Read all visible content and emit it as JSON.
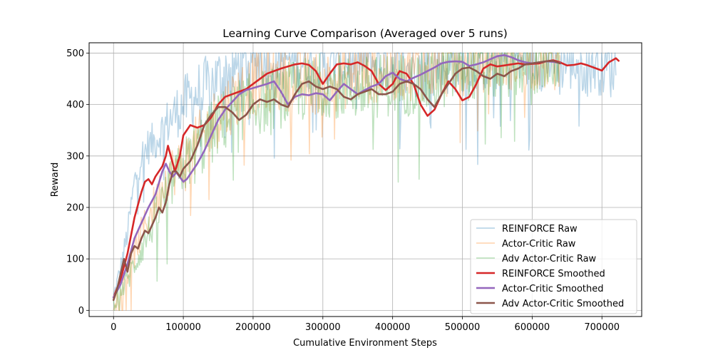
{
  "chart_data": {
    "type": "line",
    "title": "Learning Curve Comparison (Averaged over 5 runs)",
    "xlabel": "Cumulative Environment Steps",
    "ylabel": "Reward",
    "xlim": [
      -35000,
      757000
    ],
    "ylim": [
      -12,
      520
    ],
    "xticks": [
      0,
      100000,
      200000,
      300000,
      400000,
      500000,
      600000,
      700000
    ],
    "xtick_labels": [
      "0",
      "100000",
      "200000",
      "300000",
      "400000",
      "500000",
      "600000",
      "700000"
    ],
    "yticks": [
      0,
      100,
      200,
      300,
      400,
      500
    ],
    "ytick_labels": [
      "0",
      "100",
      "200",
      "300",
      "400",
      "500"
    ],
    "grid": true,
    "legend_position": "lower-right",
    "series": [
      {
        "name": "REINFORCE Raw",
        "kind": "raw",
        "color": "#1f77b4",
        "x": [
          0,
          10000,
          20000,
          30000,
          40000,
          50000,
          60000,
          80000,
          100000,
          120000,
          150000,
          180000,
          200000,
          250000,
          300000,
          350000,
          400000,
          450000,
          500000,
          550000,
          600000,
          650000,
          700000,
          720000
        ],
        "y": [
          25,
          80,
          150,
          250,
          300,
          320,
          330,
          370,
          400,
          420,
          450,
          475,
          490,
          490,
          480,
          485,
          480,
          470,
          485,
          485,
          490,
          485,
          480,
          470
        ]
      },
      {
        "name": "Actor-Critic Raw",
        "kind": "raw",
        "color": "#ff7f0e",
        "x": [
          0,
          20000,
          40000,
          60000,
          80000,
          100000,
          120000,
          150000,
          180000,
          200000,
          250000,
          300000,
          350000,
          400000,
          450000,
          500000,
          550000,
          600000,
          640000
        ],
        "y": [
          20,
          70,
          150,
          210,
          270,
          280,
          320,
          380,
          420,
          440,
          450,
          440,
          460,
          470,
          470,
          480,
          490,
          490,
          485
        ]
      },
      {
        "name": "Adv Actor-Critic Raw",
        "kind": "raw",
        "color": "#2ca02c",
        "x": [
          0,
          20000,
          40000,
          60000,
          80000,
          100000,
          120000,
          150000,
          180000,
          200000,
          250000,
          300000,
          350000,
          400000,
          450000,
          500000,
          550000,
          600000,
          640000
        ],
        "y": [
          15,
          60,
          120,
          180,
          240,
          280,
          310,
          360,
          390,
          400,
          420,
          440,
          430,
          440,
          440,
          470,
          470,
          480,
          485
        ]
      },
      {
        "name": "REINFORCE Smoothed",
        "kind": "smoothed",
        "color": "#d62728",
        "x": [
          0,
          10000,
          20000,
          30000,
          40000,
          45000,
          50000,
          55000,
          60000,
          70000,
          75000,
          78000,
          82000,
          88000,
          95000,
          100000,
          110000,
          120000,
          130000,
          140000,
          150000,
          160000,
          170000,
          180000,
          190000,
          200000,
          220000,
          240000,
          260000,
          270000,
          280000,
          290000,
          300000,
          310000,
          320000,
          330000,
          340000,
          350000,
          360000,
          370000,
          380000,
          390000,
          400000,
          410000,
          420000,
          430000,
          440000,
          450000,
          460000,
          470000,
          480000,
          490000,
          500000,
          510000,
          520000,
          530000,
          540000,
          550000,
          560000,
          570000,
          580000,
          590000,
          600000,
          610000,
          620000,
          630000,
          640000,
          650000,
          660000,
          670000,
          680000,
          690000,
          700000,
          710000,
          720000,
          724000
        ],
        "y": [
          25,
          60,
          110,
          180,
          230,
          250,
          255,
          245,
          260,
          280,
          300,
          320,
          300,
          270,
          300,
          340,
          360,
          355,
          360,
          375,
          400,
          415,
          420,
          425,
          430,
          440,
          460,
          470,
          478,
          480,
          477,
          465,
          440,
          460,
          478,
          480,
          478,
          482,
          475,
          465,
          440,
          428,
          440,
          465,
          460,
          440,
          400,
          378,
          390,
          420,
          445,
          430,
          408,
          415,
          440,
          470,
          478,
          474,
          476,
          478,
          480,
          478,
          479,
          480,
          484,
          486,
          482,
          476,
          477,
          480,
          476,
          471,
          466,
          482,
          490,
          485
        ]
      },
      {
        "name": "Actor-Critic Smoothed",
        "kind": "smoothed",
        "color": "#9467bd",
        "x": [
          0,
          10000,
          20000,
          30000,
          40000,
          50000,
          60000,
          70000,
          75000,
          80000,
          85000,
          90000,
          100000,
          105000,
          110000,
          120000,
          130000,
          140000,
          150000,
          160000,
          170000,
          180000,
          190000,
          200000,
          210000,
          220000,
          230000,
          240000,
          250000,
          260000,
          270000,
          280000,
          290000,
          300000,
          310000,
          320000,
          330000,
          340000,
          350000,
          360000,
          370000,
          380000,
          390000,
          400000,
          410000,
          420000,
          430000,
          440000,
          450000,
          460000,
          470000,
          480000,
          490000,
          500000,
          510000,
          520000,
          530000,
          540000,
          550000,
          560000,
          570000,
          580000,
          590000,
          600000,
          610000,
          620000,
          630000,
          640000
        ],
        "y": [
          25,
          50,
          90,
          140,
          170,
          200,
          225,
          270,
          285,
          270,
          260,
          268,
          250,
          255,
          265,
          285,
          310,
          340,
          370,
          390,
          405,
          420,
          428,
          432,
          436,
          440,
          445,
          425,
          400,
          415,
          420,
          418,
          422,
          420,
          408,
          425,
          440,
          430,
          420,
          428,
          435,
          440,
          455,
          462,
          450,
          445,
          452,
          458,
          465,
          472,
          480,
          483,
          484,
          483,
          475,
          478,
          482,
          488,
          494,
          496,
          492,
          486,
          482,
          480,
          482,
          484,
          483,
          481
        ]
      },
      {
        "name": "Adv Actor-Critic Smoothed",
        "kind": "smoothed",
        "color": "#8c564b",
        "x": [
          0,
          5000,
          10000,
          15000,
          20000,
          25000,
          30000,
          35000,
          40000,
          45000,
          50000,
          55000,
          60000,
          65000,
          70000,
          75000,
          80000,
          85000,
          90000,
          95000,
          100000,
          110000,
          120000,
          130000,
          140000,
          150000,
          160000,
          170000,
          180000,
          190000,
          200000,
          210000,
          220000,
          230000,
          240000,
          250000,
          260000,
          270000,
          280000,
          290000,
          300000,
          310000,
          320000,
          330000,
          340000,
          350000,
          360000,
          370000,
          380000,
          390000,
          400000,
          410000,
          420000,
          430000,
          440000,
          450000,
          460000,
          470000,
          480000,
          490000,
          500000,
          510000,
          520000,
          530000,
          540000,
          550000,
          560000,
          570000,
          580000,
          590000,
          600000,
          610000,
          620000,
          630000,
          640000
        ],
        "y": [
          20,
          40,
          70,
          100,
          75,
          110,
          125,
          120,
          140,
          155,
          150,
          165,
          180,
          200,
          190,
          210,
          245,
          270,
          270,
          260,
          275,
          290,
          320,
          360,
          380,
          395,
          395,
          385,
          370,
          380,
          400,
          410,
          405,
          410,
          400,
          395,
          420,
          440,
          445,
          435,
          430,
          435,
          430,
          415,
          410,
          420,
          425,
          430,
          420,
          420,
          425,
          440,
          445,
          440,
          430,
          410,
          395,
          420,
          440,
          460,
          470,
          472,
          465,
          455,
          450,
          460,
          455,
          465,
          470,
          478,
          480,
          482,
          484,
          485,
          480
        ]
      }
    ]
  }
}
